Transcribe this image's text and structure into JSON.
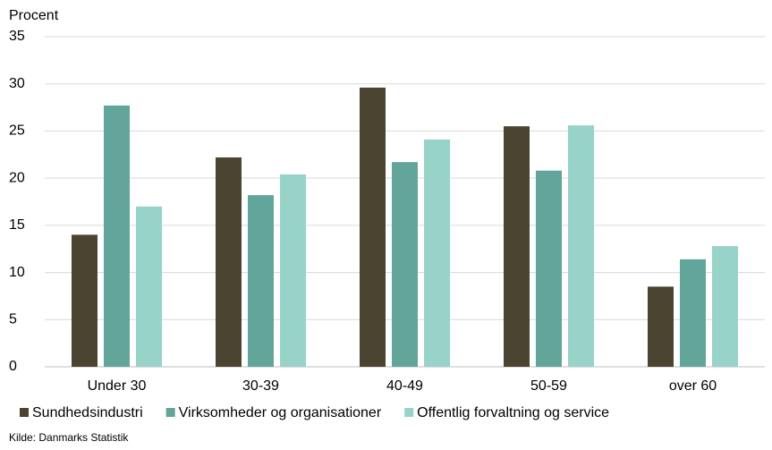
{
  "chart_data": {
    "type": "bar",
    "y_label": "Procent",
    "categories": [
      "Under 30",
      "30-39",
      "40-49",
      "50-59",
      "over 60"
    ],
    "series": [
      {
        "name": "Sundhedsindustri",
        "color": "#4a4430",
        "values": [
          14.0,
          22.2,
          29.6,
          25.5,
          8.5
        ]
      },
      {
        "name": "Virksomheder og organisationer",
        "color": "#62a59a",
        "values": [
          27.7,
          18.2,
          21.7,
          20.8,
          11.4
        ]
      },
      {
        "name": "Offentlig forvaltning og service",
        "color": "#98d3c9",
        "values": [
          17.0,
          20.4,
          24.1,
          25.6,
          12.8
        ]
      }
    ],
    "ylim": [
      0,
      35
    ],
    "yticks": [
      0,
      5,
      10,
      15,
      20,
      25,
      30,
      35
    ],
    "grid": true,
    "source": "Kilde: Danmarks Statistik"
  }
}
